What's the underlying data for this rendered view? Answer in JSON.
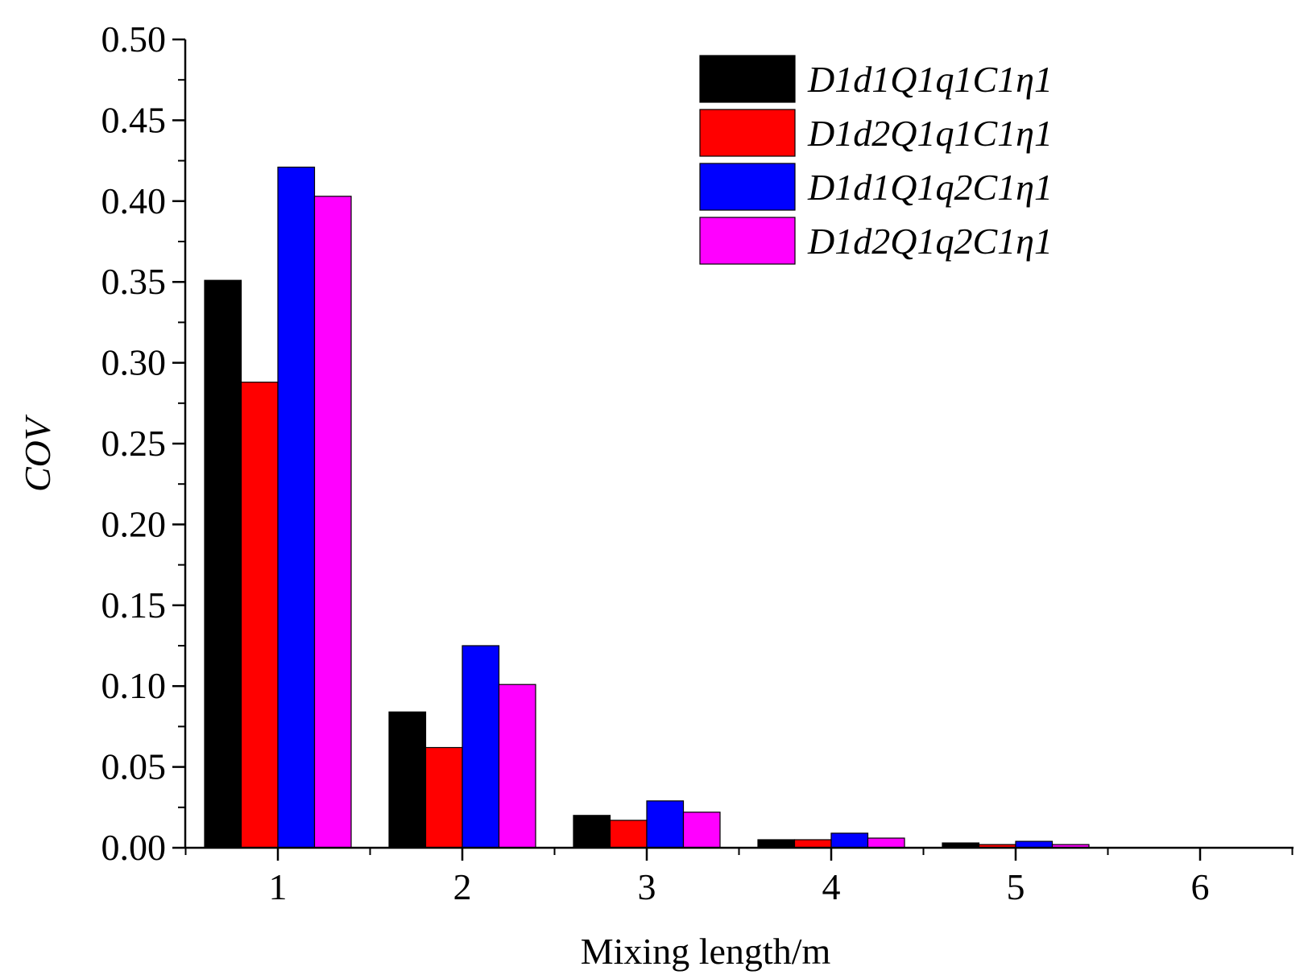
{
  "chart_data": {
    "type": "bar",
    "title": "",
    "xlabel": "Mixing length/m",
    "ylabel": "COV",
    "categories": [
      "1",
      "2",
      "3",
      "4",
      "5",
      "6"
    ],
    "ylim": [
      0,
      0.5
    ],
    "yticks": [
      "0.00",
      "0.05",
      "0.10",
      "0.15",
      "0.20",
      "0.25",
      "0.30",
      "0.35",
      "0.40",
      "0.45",
      "0.50"
    ],
    "legend_position": "top-right",
    "grid": false,
    "series": [
      {
        "name": "D1d1Q1q1C1η1",
        "color": "#000000",
        "values": [
          0.351,
          0.084,
          0.02,
          0.005,
          0.003,
          0
        ]
      },
      {
        "name": "D1d2Q1q1C1η1",
        "color": "#ff0000",
        "values": [
          0.288,
          0.062,
          0.017,
          0.005,
          0.002,
          0
        ]
      },
      {
        "name": "D1d1Q1q2C1η1",
        "color": "#0000ff",
        "values": [
          0.421,
          0.125,
          0.029,
          0.009,
          0.004,
          0
        ]
      },
      {
        "name": "D1d2Q1q2C1η1",
        "color": "#ff00ff",
        "values": [
          0.403,
          0.101,
          0.022,
          0.006,
          0.002,
          0
        ]
      }
    ]
  }
}
